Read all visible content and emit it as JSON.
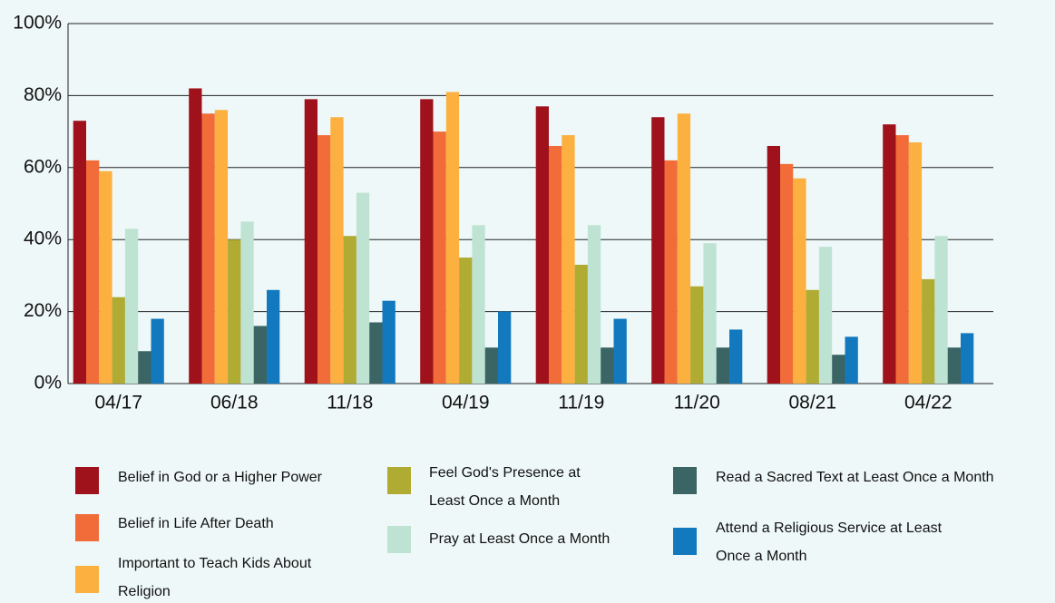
{
  "chart_data": {
    "type": "bar",
    "categories": [
      "04/17",
      "06/18",
      "11/18",
      "04/19",
      "11/19",
      "11/20",
      "08/21",
      "04/22"
    ],
    "series": [
      {
        "name": "Belief in God or a Higher Power",
        "color": "#a0121b",
        "values": [
          73,
          82,
          79,
          79,
          77,
          74,
          66,
          72
        ]
      },
      {
        "name": "Belief in Life After Death",
        "color": "#f26c3a",
        "values": [
          62,
          75,
          69,
          70,
          66,
          62,
          61,
          69
        ]
      },
      {
        "name": "Important to Teach Kids About Religion",
        "color": "#fbb040",
        "values": [
          59,
          76,
          74,
          81,
          69,
          75,
          57,
          67
        ]
      },
      {
        "name": "Feel God's Presence at Least Once a Month",
        "color": "#b0ab32",
        "values": [
          24,
          40,
          41,
          35,
          33,
          27,
          26,
          29
        ]
      },
      {
        "name": "Pray at Least Once a Month",
        "color": "#bfe3d3",
        "values": [
          43,
          45,
          53,
          44,
          44,
          39,
          38,
          41
        ]
      },
      {
        "name": "Read a Sacred Text at Least Once a Month",
        "color": "#3b6464",
        "values": [
          9,
          16,
          17,
          10,
          10,
          10,
          8,
          10
        ]
      },
      {
        "name": "Attend a Religious Service at Least Once a Month",
        "color": "#1279be",
        "values": [
          18,
          26,
          23,
          20,
          18,
          15,
          13,
          14
        ]
      }
    ],
    "ylim": [
      0,
      100
    ],
    "yticks": [
      {
        "value": 0,
        "label": "0%"
      },
      {
        "value": 20,
        "label": "20%"
      },
      {
        "value": 40,
        "label": "40%"
      },
      {
        "value": 60,
        "label": "60%"
      },
      {
        "value": 80,
        "label": "80%"
      },
      {
        "value": 100,
        "label": "100%"
      }
    ],
    "grid": true
  }
}
